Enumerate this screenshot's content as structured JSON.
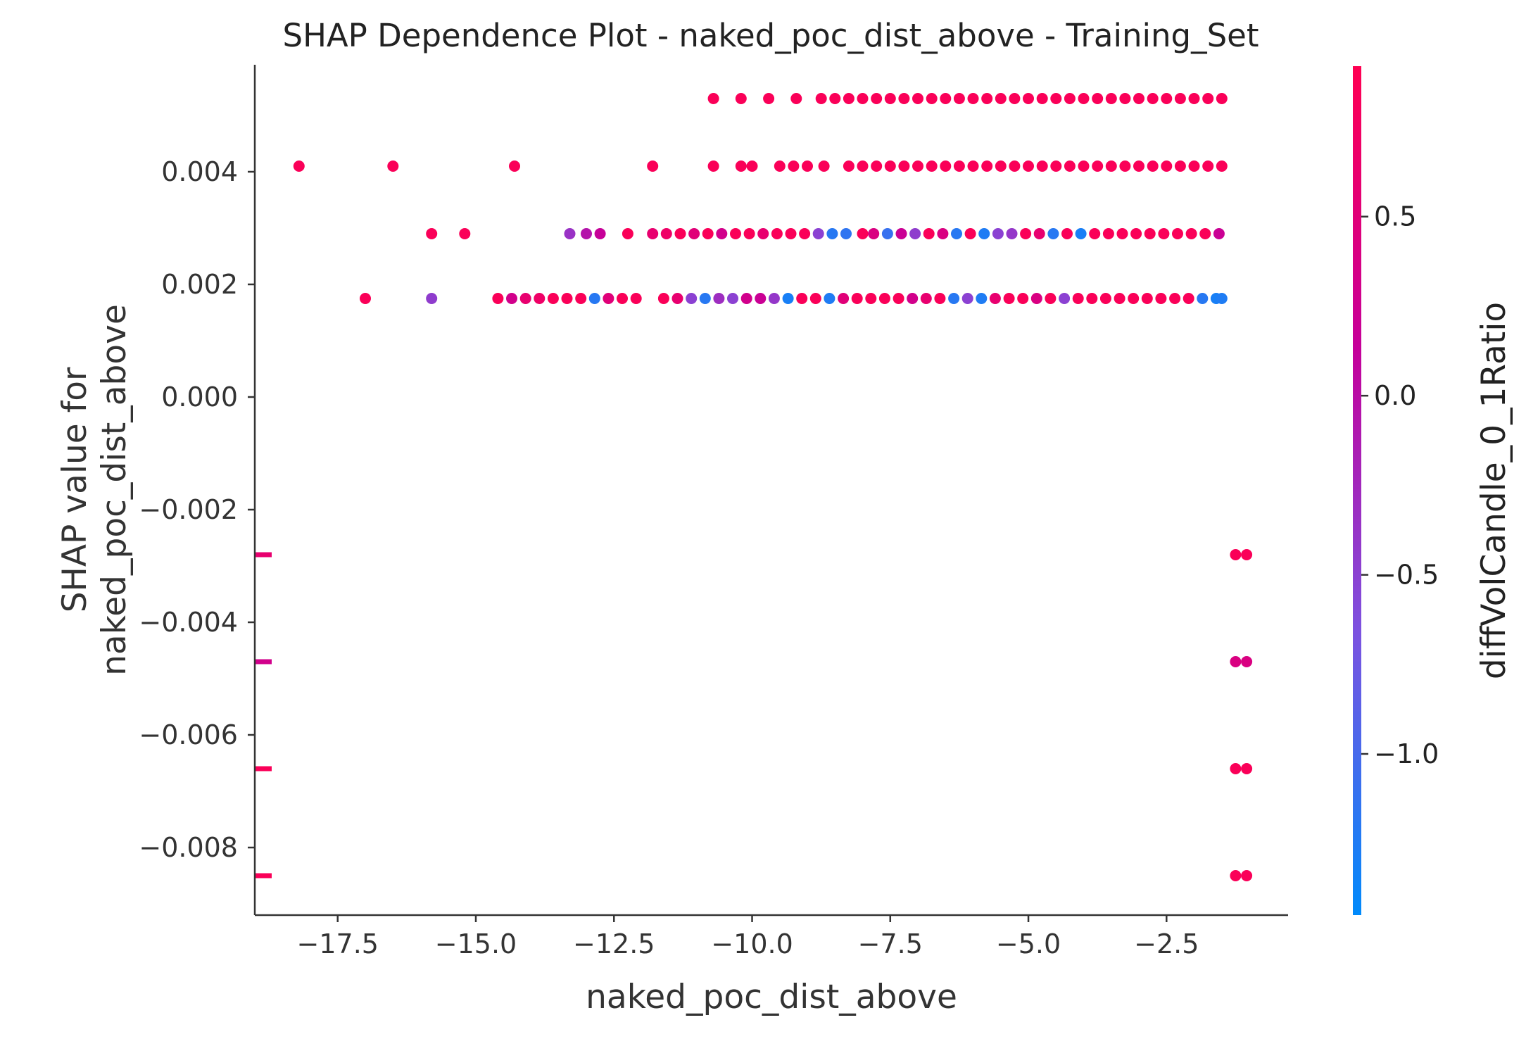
{
  "chart_data": {
    "type": "scatter",
    "title": "SHAP Dependence Plot - naked_poc_dist_above - Training_Set",
    "xlabel": "naked_poc_dist_above",
    "ylabel_lines": [
      "SHAP value for",
      "naked_poc_dist_above"
    ],
    "xlim": [
      -19.0,
      -0.3
    ],
    "ylim": [
      -0.0092,
      0.0059
    ],
    "x_ticks": [
      -17.5,
      -15.0,
      -12.5,
      -10.0,
      -7.5,
      -5.0,
      -2.5
    ],
    "x_tick_labels": [
      "−17.5",
      "−15.0",
      "−12.5",
      "−10.0",
      "−7.5",
      "−5.0",
      "−2.5"
    ],
    "y_ticks": [
      0.004,
      0.002,
      0.0,
      -0.002,
      -0.004,
      -0.006,
      -0.008
    ],
    "y_tick_labels": [
      "0.004",
      "0.002",
      "0.000",
      "−0.002",
      "−0.004",
      "−0.006",
      "−0.008"
    ],
    "colorbar": {
      "label": "diffVolCandle_0_1Ratio",
      "range": [
        -1.45,
        0.92
      ],
      "ticks": [
        0.5,
        0.0,
        -0.5,
        -1.0
      ],
      "tick_labels": [
        "0.5",
        "0.0",
        "−0.5",
        "−1.0"
      ],
      "gradient": [
        "#008afb",
        "#7c52e0",
        "#c5009a",
        "#ff0052"
      ]
    },
    "point_rows": [
      {
        "y": 0.0053,
        "points": [
          [
            -10.7,
            0.85
          ],
          [
            -10.2,
            0.85
          ],
          [
            -9.7,
            0.85
          ],
          [
            -9.2,
            0.85
          ],
          [
            -8.75,
            0.85
          ],
          [
            -8.5,
            0.85
          ],
          [
            -8.25,
            0.85
          ],
          [
            -8.0,
            0.85
          ],
          [
            -7.75,
            0.85
          ],
          [
            -7.5,
            0.85
          ],
          [
            -7.25,
            0.85
          ],
          [
            -7.0,
            0.85
          ],
          [
            -6.75,
            0.85
          ],
          [
            -6.5,
            0.85
          ],
          [
            -6.25,
            0.85
          ],
          [
            -6.0,
            0.85
          ],
          [
            -5.75,
            0.85
          ],
          [
            -5.5,
            0.85
          ],
          [
            -5.25,
            0.85
          ],
          [
            -5.0,
            0.85
          ],
          [
            -4.75,
            0.85
          ],
          [
            -4.5,
            0.85
          ],
          [
            -4.25,
            0.85
          ],
          [
            -4.0,
            0.85
          ],
          [
            -3.75,
            0.85
          ],
          [
            -3.5,
            0.85
          ],
          [
            -3.25,
            0.85
          ],
          [
            -3.0,
            0.85
          ],
          [
            -2.75,
            0.85
          ],
          [
            -2.5,
            0.85
          ],
          [
            -2.25,
            0.85
          ],
          [
            -2.0,
            0.85
          ],
          [
            -1.75,
            0.85
          ],
          [
            -1.5,
            0.85
          ]
        ]
      },
      {
        "y": 0.0041,
        "points": [
          [
            -18.2,
            0.85
          ],
          [
            -16.5,
            0.85
          ],
          [
            -14.3,
            0.85
          ],
          [
            -11.8,
            0.85
          ],
          [
            -10.7,
            0.85
          ],
          [
            -10.2,
            0.85
          ],
          [
            -10.0,
            0.85
          ],
          [
            -9.5,
            0.85
          ],
          [
            -9.25,
            0.85
          ],
          [
            -9.0,
            0.85
          ],
          [
            -8.7,
            0.85
          ],
          [
            -8.25,
            0.85
          ],
          [
            -8.0,
            0.85
          ],
          [
            -7.75,
            0.85
          ],
          [
            -7.5,
            0.85
          ],
          [
            -7.25,
            0.85
          ],
          [
            -7.0,
            0.85
          ],
          [
            -6.75,
            0.85
          ],
          [
            -6.5,
            0.85
          ],
          [
            -6.25,
            0.85
          ],
          [
            -6.0,
            0.85
          ],
          [
            -5.75,
            0.85
          ],
          [
            -5.5,
            0.85
          ],
          [
            -5.25,
            0.85
          ],
          [
            -5.0,
            0.85
          ],
          [
            -4.75,
            0.85
          ],
          [
            -4.5,
            0.85
          ],
          [
            -4.25,
            0.85
          ],
          [
            -4.0,
            0.85
          ],
          [
            -3.75,
            0.85
          ],
          [
            -3.5,
            0.85
          ],
          [
            -3.25,
            0.85
          ],
          [
            -3.0,
            0.85
          ],
          [
            -2.75,
            0.85
          ],
          [
            -2.5,
            0.85
          ],
          [
            -2.25,
            0.85
          ],
          [
            -2.0,
            0.85
          ],
          [
            -1.75,
            0.85
          ],
          [
            -1.5,
            0.85
          ]
        ]
      },
      {
        "y": 0.0029,
        "points": [
          [
            -15.8,
            0.85
          ],
          [
            -15.2,
            0.85
          ],
          [
            -13.3,
            -0.35
          ],
          [
            -13.0,
            -0.05
          ],
          [
            -12.75,
            0.15
          ],
          [
            -12.25,
            0.85
          ],
          [
            -11.8,
            0.6
          ],
          [
            -11.55,
            0.7
          ],
          [
            -11.3,
            0.85
          ],
          [
            -11.05,
            0.5
          ],
          [
            -10.8,
            0.85
          ],
          [
            -10.55,
            0.3
          ],
          [
            -10.3,
            0.85
          ],
          [
            -10.05,
            0.85
          ],
          [
            -9.8,
            0.6
          ],
          [
            -9.55,
            0.85
          ],
          [
            -9.3,
            0.85
          ],
          [
            -9.05,
            0.85
          ],
          [
            -8.8,
            -0.5
          ],
          [
            -8.55,
            -1.2
          ],
          [
            -8.3,
            -1.15
          ],
          [
            -8.0,
            0.85
          ],
          [
            -7.8,
            0.4
          ],
          [
            -7.55,
            -1.1
          ],
          [
            -7.3,
            0.2
          ],
          [
            -7.05,
            -0.45
          ],
          [
            -6.8,
            0.85
          ],
          [
            -6.55,
            0.4
          ],
          [
            -6.3,
            -1.2
          ],
          [
            -6.05,
            0.85
          ],
          [
            -5.8,
            -1.25
          ],
          [
            -5.55,
            -0.5
          ],
          [
            -5.3,
            -0.4
          ],
          [
            -5.05,
            0.85
          ],
          [
            -4.8,
            0.6
          ],
          [
            -4.55,
            -1.2
          ],
          [
            -4.3,
            0.85
          ],
          [
            -4.05,
            -1.3
          ],
          [
            -3.8,
            0.85
          ],
          [
            -3.55,
            0.85
          ],
          [
            -3.3,
            0.85
          ],
          [
            -3.05,
            0.85
          ],
          [
            -2.8,
            0.85
          ],
          [
            -2.55,
            0.85
          ],
          [
            -2.3,
            0.85
          ],
          [
            -2.05,
            0.85
          ],
          [
            -1.8,
            0.85
          ],
          [
            -1.55,
            0.2
          ]
        ]
      },
      {
        "y": 0.00175,
        "points": [
          [
            -17.0,
            0.85
          ],
          [
            -15.8,
            -0.45
          ],
          [
            -14.6,
            0.85
          ],
          [
            -14.35,
            0.3
          ],
          [
            -14.1,
            0.6
          ],
          [
            -13.85,
            0.7
          ],
          [
            -13.6,
            0.85
          ],
          [
            -13.35,
            0.85
          ],
          [
            -13.1,
            0.85
          ],
          [
            -12.85,
            -1.2
          ],
          [
            -12.6,
            0.5
          ],
          [
            -12.35,
            0.85
          ],
          [
            -12.1,
            0.85
          ],
          [
            -11.6,
            0.85
          ],
          [
            -11.35,
            0.6
          ],
          [
            -11.1,
            -0.5
          ],
          [
            -10.85,
            -1.2
          ],
          [
            -10.6,
            -0.3
          ],
          [
            -10.35,
            -0.5
          ],
          [
            -10.1,
            0.3
          ],
          [
            -9.85,
            0.2
          ],
          [
            -9.6,
            -0.4
          ],
          [
            -9.35,
            -1.3
          ],
          [
            -9.1,
            0.85
          ],
          [
            -8.85,
            0.85
          ],
          [
            -8.6,
            -1.25
          ],
          [
            -8.35,
            0.5
          ],
          [
            -8.1,
            0.85
          ],
          [
            -7.85,
            0.85
          ],
          [
            -7.6,
            0.85
          ],
          [
            -7.35,
            0.85
          ],
          [
            -7.1,
            0.3
          ],
          [
            -6.85,
            0.6
          ],
          [
            -6.6,
            0.85
          ],
          [
            -6.35,
            -1.2
          ],
          [
            -6.1,
            -0.5
          ],
          [
            -5.85,
            -1.25
          ],
          [
            -5.6,
            0.6
          ],
          [
            -5.35,
            0.85
          ],
          [
            -5.1,
            0.85
          ],
          [
            -4.85,
            0.4
          ],
          [
            -4.6,
            0.85
          ],
          [
            -4.35,
            -0.5
          ],
          [
            -4.1,
            0.85
          ],
          [
            -3.85,
            0.85
          ],
          [
            -3.6,
            0.85
          ],
          [
            -3.35,
            0.85
          ],
          [
            -3.1,
            0.85
          ],
          [
            -2.85,
            0.85
          ],
          [
            -2.6,
            0.85
          ],
          [
            -2.35,
            0.85
          ],
          [
            -2.1,
            0.85
          ],
          [
            -1.85,
            -1.2
          ],
          [
            -1.6,
            -1.3
          ],
          [
            -1.5,
            -1.25
          ]
        ]
      },
      {
        "y": -0.0028,
        "points": [
          [
            -18.95,
            0.6
          ],
          [
            -1.25,
            0.85
          ],
          [
            -1.05,
            0.85
          ]
        ]
      },
      {
        "y": -0.0047,
        "points": [
          [
            -18.95,
            0.3
          ],
          [
            -1.25,
            0.4
          ],
          [
            -1.05,
            0.4
          ]
        ]
      },
      {
        "y": -0.0066,
        "points": [
          [
            -18.95,
            0.85
          ],
          [
            -1.25,
            0.85
          ],
          [
            -1.05,
            0.85
          ]
        ]
      },
      {
        "y": -0.0085,
        "points": [
          [
            -18.95,
            0.85
          ],
          [
            -1.25,
            0.85
          ],
          [
            -1.05,
            0.85
          ]
        ]
      }
    ]
  }
}
